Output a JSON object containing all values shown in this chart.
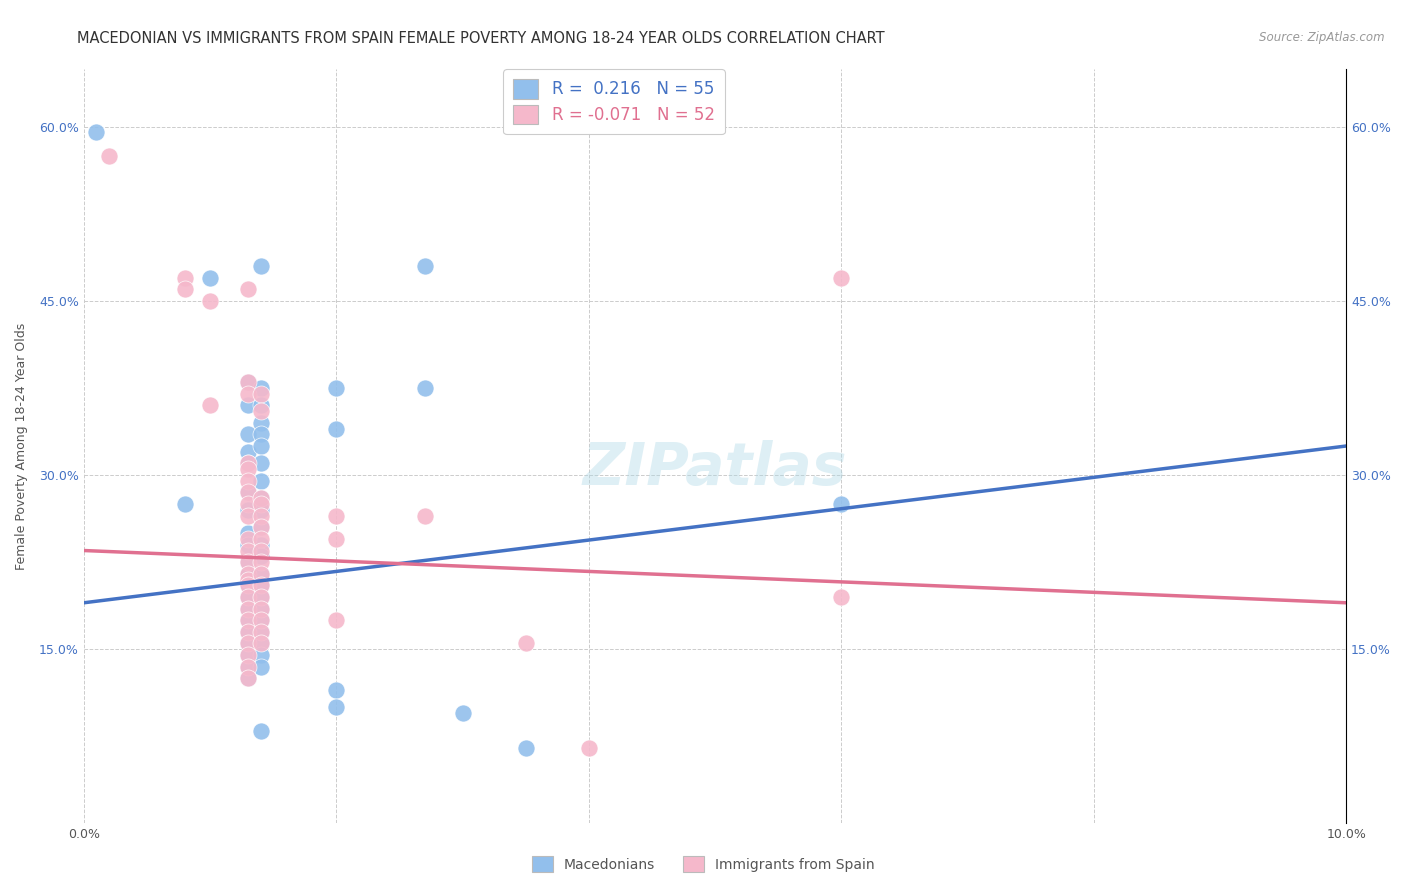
{
  "title": "MACEDONIAN VS IMMIGRANTS FROM SPAIN FEMALE POVERTY AMONG 18-24 YEAR OLDS CORRELATION CHART",
  "source": "Source: ZipAtlas.com",
  "ylabel": "Female Poverty Among 18-24 Year Olds",
  "xlim": [
    0.0,
    0.1
  ],
  "ylim": [
    0.0,
    0.65
  ],
  "blue_color": "#92bfec",
  "pink_color": "#f5b8cb",
  "blue_line_color": "#4472c4",
  "pink_line_color": "#e07090",
  "watermark_text": "ZIPatlas",
  "macedonian_R": 0.216,
  "macedonian_N": 55,
  "spain_R": -0.071,
  "spain_N": 52,
  "macedonian_points": [
    [
      0.001,
      0.595
    ],
    [
      0.008,
      0.275
    ],
    [
      0.01,
      0.47
    ],
    [
      0.013,
      0.38
    ],
    [
      0.013,
      0.36
    ],
    [
      0.013,
      0.335
    ],
    [
      0.013,
      0.32
    ],
    [
      0.013,
      0.31
    ],
    [
      0.013,
      0.285
    ],
    [
      0.013,
      0.27
    ],
    [
      0.013,
      0.25
    ],
    [
      0.013,
      0.24
    ],
    [
      0.013,
      0.225
    ],
    [
      0.013,
      0.215
    ],
    [
      0.013,
      0.205
    ],
    [
      0.013,
      0.195
    ],
    [
      0.013,
      0.185
    ],
    [
      0.013,
      0.175
    ],
    [
      0.013,
      0.165
    ],
    [
      0.013,
      0.155
    ],
    [
      0.013,
      0.145
    ],
    [
      0.013,
      0.135
    ],
    [
      0.013,
      0.125
    ],
    [
      0.014,
      0.48
    ],
    [
      0.014,
      0.375
    ],
    [
      0.014,
      0.36
    ],
    [
      0.014,
      0.345
    ],
    [
      0.014,
      0.335
    ],
    [
      0.014,
      0.325
    ],
    [
      0.014,
      0.31
    ],
    [
      0.014,
      0.295
    ],
    [
      0.014,
      0.28
    ],
    [
      0.014,
      0.27
    ],
    [
      0.014,
      0.255
    ],
    [
      0.014,
      0.24
    ],
    [
      0.014,
      0.23
    ],
    [
      0.014,
      0.215
    ],
    [
      0.014,
      0.205
    ],
    [
      0.014,
      0.195
    ],
    [
      0.014,
      0.185
    ],
    [
      0.014,
      0.175
    ],
    [
      0.014,
      0.165
    ],
    [
      0.014,
      0.155
    ],
    [
      0.014,
      0.145
    ],
    [
      0.014,
      0.135
    ],
    [
      0.014,
      0.08
    ],
    [
      0.02,
      0.375
    ],
    [
      0.02,
      0.34
    ],
    [
      0.02,
      0.115
    ],
    [
      0.02,
      0.1
    ],
    [
      0.027,
      0.48
    ],
    [
      0.027,
      0.375
    ],
    [
      0.03,
      0.095
    ],
    [
      0.035,
      0.065
    ],
    [
      0.06,
      0.275
    ]
  ],
  "spain_points": [
    [
      0.002,
      0.575
    ],
    [
      0.008,
      0.47
    ],
    [
      0.008,
      0.46
    ],
    [
      0.01,
      0.45
    ],
    [
      0.01,
      0.36
    ],
    [
      0.013,
      0.46
    ],
    [
      0.013,
      0.38
    ],
    [
      0.013,
      0.37
    ],
    [
      0.013,
      0.31
    ],
    [
      0.013,
      0.305
    ],
    [
      0.013,
      0.295
    ],
    [
      0.013,
      0.285
    ],
    [
      0.013,
      0.275
    ],
    [
      0.013,
      0.265
    ],
    [
      0.013,
      0.245
    ],
    [
      0.013,
      0.235
    ],
    [
      0.013,
      0.225
    ],
    [
      0.013,
      0.215
    ],
    [
      0.013,
      0.21
    ],
    [
      0.013,
      0.205
    ],
    [
      0.013,
      0.195
    ],
    [
      0.013,
      0.185
    ],
    [
      0.013,
      0.175
    ],
    [
      0.013,
      0.165
    ],
    [
      0.013,
      0.155
    ],
    [
      0.013,
      0.145
    ],
    [
      0.013,
      0.135
    ],
    [
      0.013,
      0.125
    ],
    [
      0.014,
      0.37
    ],
    [
      0.014,
      0.355
    ],
    [
      0.014,
      0.28
    ],
    [
      0.014,
      0.275
    ],
    [
      0.014,
      0.265
    ],
    [
      0.014,
      0.255
    ],
    [
      0.014,
      0.245
    ],
    [
      0.014,
      0.235
    ],
    [
      0.014,
      0.225
    ],
    [
      0.014,
      0.215
    ],
    [
      0.014,
      0.205
    ],
    [
      0.014,
      0.195
    ],
    [
      0.014,
      0.185
    ],
    [
      0.014,
      0.175
    ],
    [
      0.014,
      0.165
    ],
    [
      0.014,
      0.155
    ],
    [
      0.02,
      0.265
    ],
    [
      0.02,
      0.245
    ],
    [
      0.02,
      0.175
    ],
    [
      0.027,
      0.265
    ],
    [
      0.035,
      0.155
    ],
    [
      0.04,
      0.065
    ],
    [
      0.06,
      0.47
    ],
    [
      0.06,
      0.195
    ]
  ],
  "grid_color": "#cccccc",
  "bg_color": "#ffffff",
  "title_fontsize": 10.5,
  "axis_label_fontsize": 9,
  "tick_fontsize": 9,
  "legend_fontsize": 12,
  "watermark_fontsize": 42,
  "blue_legend_color": "#4472c4",
  "pink_legend_color": "#e07090"
}
